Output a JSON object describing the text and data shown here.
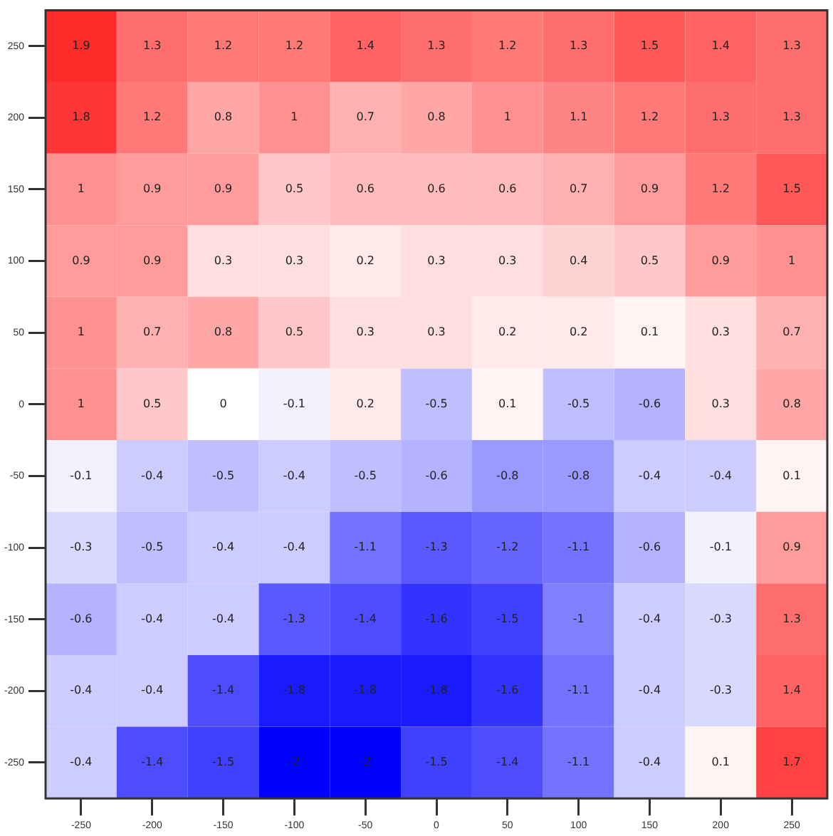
{
  "chart_data": {
    "type": "heatmap",
    "categories": [
      "-250",
      "-200",
      "-150",
      "-100",
      "-50",
      "0",
      "50",
      "100",
      "150",
      "200",
      "250"
    ],
    "y_categories": [
      "250",
      "200",
      "150",
      "100",
      "50",
      "0",
      "-50",
      "-100",
      "-150",
      "-200",
      "-250"
    ],
    "cells": [
      [
        1.9,
        1.3,
        1.2,
        1.2,
        1.4,
        1.3,
        1.2,
        1.3,
        1.5,
        1.4,
        1.3
      ],
      [
        1.8,
        1.2,
        0.8,
        1.0,
        0.7,
        0.8,
        1.0,
        1.1,
        1.2,
        1.3,
        1.3
      ],
      [
        1.0,
        0.9,
        0.9,
        0.5,
        0.6,
        0.6,
        0.6,
        0.7,
        0.9,
        1.2,
        1.5
      ],
      [
        0.9,
        0.9,
        0.3,
        0.3,
        0.2,
        0.3,
        0.3,
        0.4,
        0.5,
        0.9,
        1.0
      ],
      [
        1.0,
        0.7,
        0.8,
        0.5,
        0.3,
        0.3,
        0.2,
        0.2,
        0.1,
        0.3,
        0.7
      ],
      [
        1.0,
        0.5,
        0.0,
        -0.1,
        0.2,
        -0.5,
        0.1,
        -0.5,
        -0.6,
        0.3,
        0.8
      ],
      [
        -0.1,
        -0.4,
        -0.5,
        -0.4,
        -0.5,
        -0.6,
        -0.8,
        -0.8,
        -0.4,
        -0.4,
        0.1
      ],
      [
        -0.3,
        -0.5,
        -0.4,
        -0.4,
        -1.1,
        -1.3,
        -1.2,
        -1.1,
        -0.6,
        -0.1,
        0.9
      ],
      [
        -0.6,
        -0.4,
        -0.4,
        -1.3,
        -1.4,
        -1.6,
        -1.5,
        -1.0,
        -0.4,
        -0.3,
        1.3
      ],
      [
        -0.4,
        -0.4,
        -1.4,
        -1.8,
        -1.8,
        -1.8,
        -1.6,
        -1.1,
        -0.4,
        -0.3,
        1.4
      ],
      [
        -0.4,
        -1.4,
        -1.5,
        -2.0,
        -2.0,
        -1.5,
        -1.4,
        -1.1,
        -0.4,
        0.1,
        1.7
      ]
    ],
    "colors": [
      "#0000ff",
      "#ffffff",
      "#ff2020"
    ],
    "data_labels": true
  }
}
